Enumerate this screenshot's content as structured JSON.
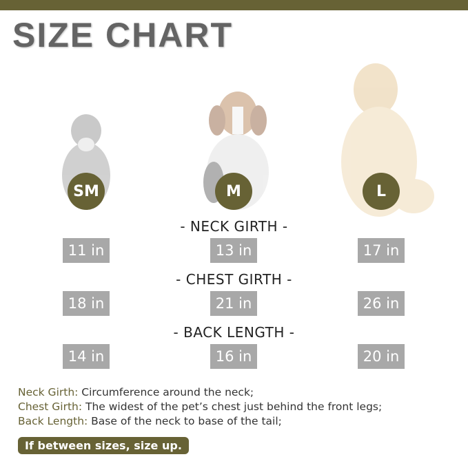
{
  "title": "SIZE CHART",
  "colors": {
    "accent": "#676235",
    "value_box": "#a8a8a8",
    "title": "#646464"
  },
  "sizes": [
    {
      "label": "SM",
      "neck": "11 in",
      "chest": "18 in",
      "back": "14 in"
    },
    {
      "label": "M",
      "neck": "13 in",
      "chest": "21 in",
      "back": "16 in"
    },
    {
      "label": "L",
      "neck": "17 in",
      "chest": "26 in",
      "back": "20 in"
    }
  ],
  "headings": {
    "neck": "- NECK GIRTH -",
    "chest": "- CHEST GIRTH -",
    "back": "- BACK LENGTH -"
  },
  "definitions": [
    {
      "term": "Neck Girth:",
      "text": " Circumference around the neck;"
    },
    {
      "term": "Chest Girth:",
      "text": " The widest of the pet’s chest just behind the front legs;"
    },
    {
      "term": "Back Length:",
      "text": " Base of the neck to base of the tail;"
    }
  ],
  "tip": "If between sizes, size up."
}
